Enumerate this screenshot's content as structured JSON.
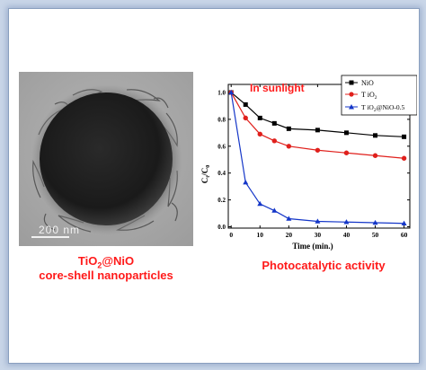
{
  "colors": {
    "accent_red": "#ff1a1a",
    "background": "#c9d6e8",
    "nio": "#000000",
    "tio2": "#e0201c",
    "core_shell": "#1436c8"
  },
  "image_panel": {
    "scale_bar_label": "200 nm",
    "caption_line1_prefix": "TiO",
    "caption_line1_sub": "2",
    "caption_line1_suffix": "@NiO",
    "caption_line2": "core-shell nanoparticles"
  },
  "chart_caption": "Photocatalytic activity",
  "chart_data": {
    "type": "line",
    "title": "In sunlight",
    "xlabel": "Time (min.)",
    "ylabel_main": "C",
    "ylabel_sub1": "t",
    "ylabel_mid": "/C",
    "ylabel_sub2": "0",
    "x": [
      0,
      5,
      10,
      15,
      20,
      30,
      40,
      50,
      60
    ],
    "xticks": [
      0,
      10,
      20,
      30,
      40,
      50,
      60
    ],
    "yticks": [
      0.0,
      0.2,
      0.4,
      0.6,
      0.8,
      1.0
    ],
    "xticklabels": [
      "0",
      "10",
      "20",
      "30",
      "40",
      "50",
      "60"
    ],
    "yticklabels": [
      "0.0",
      "0.2",
      "0.4",
      "0.6",
      "0.8",
      "1.0"
    ],
    "xlim": [
      -1,
      62
    ],
    "ylim": [
      -0.01,
      1.06
    ],
    "legend_position": "top-right",
    "series": [
      {
        "name": "NiO",
        "marker": "square",
        "color": "#000000",
        "values": [
          1.0,
          0.91,
          0.81,
          0.77,
          0.73,
          0.72,
          0.7,
          0.68,
          0.67
        ]
      },
      {
        "name_main": "T iO",
        "name_sub": "2",
        "marker": "circle",
        "color": "#e0201c",
        "values": [
          1.0,
          0.81,
          0.69,
          0.64,
          0.6,
          0.57,
          0.55,
          0.53,
          0.51
        ]
      },
      {
        "name_main": "T iO",
        "name_sub": "2",
        "name_suffix": "@NiO-0.5",
        "marker": "triangle",
        "color": "#1436c8",
        "values": [
          1.0,
          0.33,
          0.17,
          0.12,
          0.06,
          0.04,
          0.035,
          0.03,
          0.025
        ]
      }
    ]
  }
}
